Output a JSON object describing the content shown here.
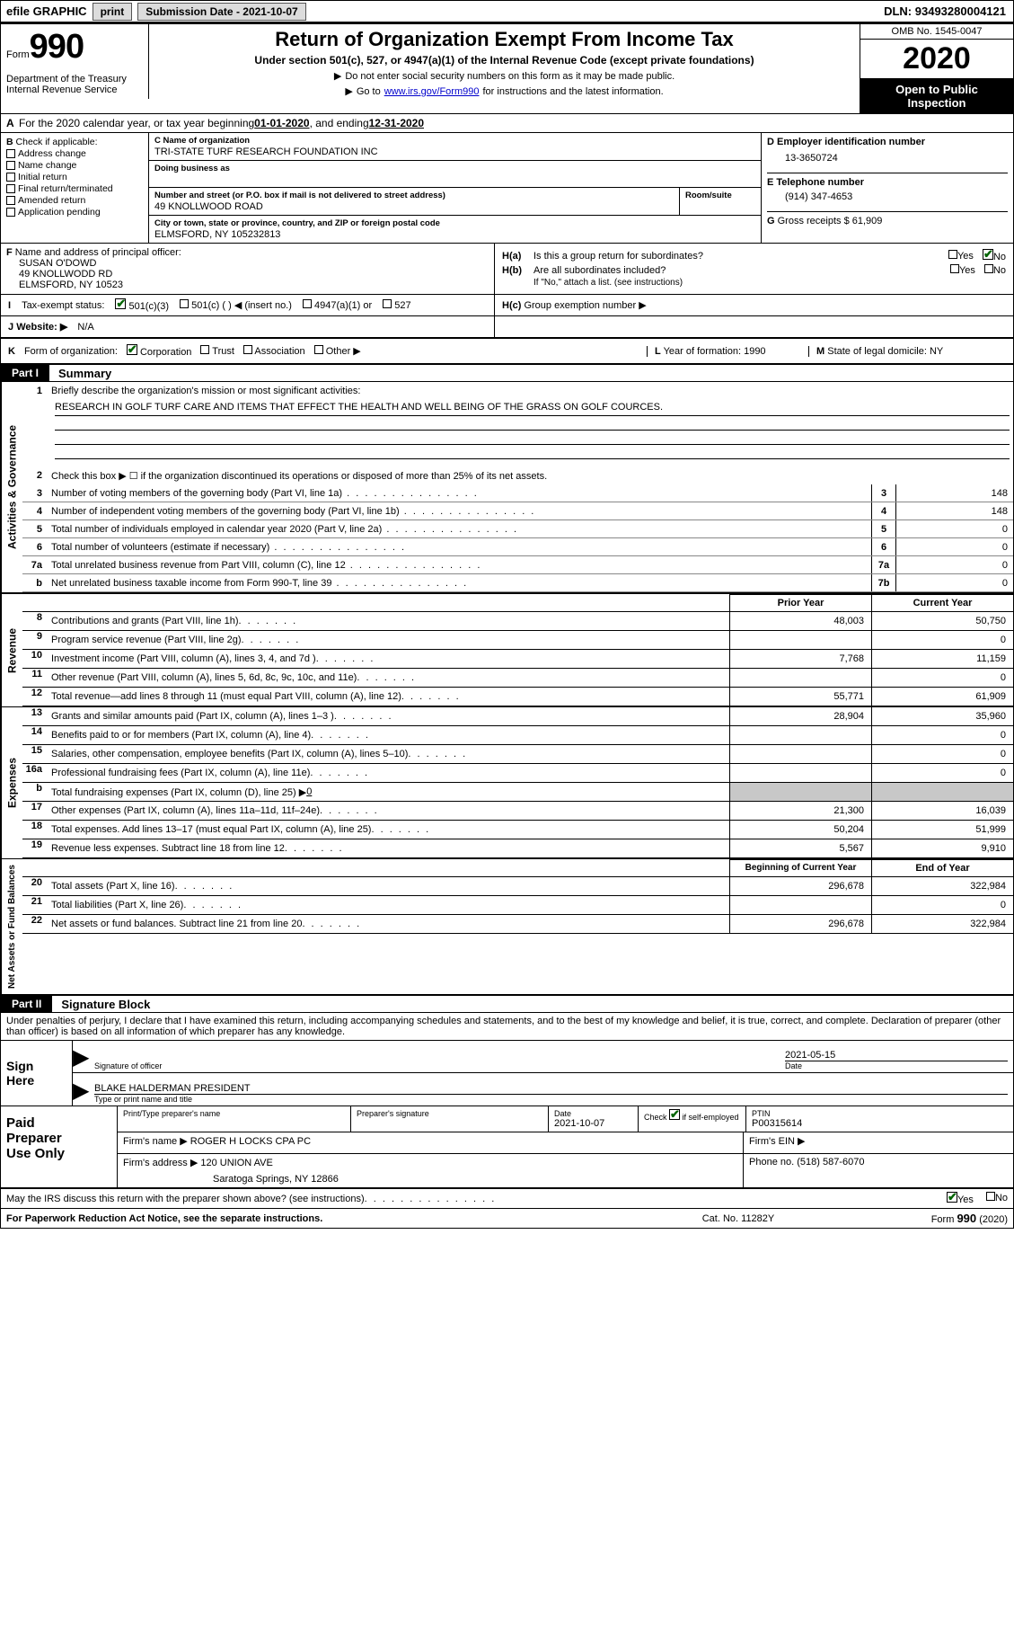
{
  "topbar": {
    "efile": "efile GRAPHIC",
    "print": "print",
    "submission_label": "Submission Date - ",
    "submission_date": "2021-10-07",
    "dln_label": "DLN: ",
    "dln": "93493280004121"
  },
  "header": {
    "form_word": "Form",
    "form_num": "990",
    "dept1": "Department of the Treasury",
    "dept2": "Internal Revenue Service",
    "title": "Return of Organization Exempt From Income Tax",
    "subtitle": "Under section 501(c), 527, or 4947(a)(1) of the Internal Revenue Code (except private foundations)",
    "instr1": "Do not enter social security numbers on this form as it may be made public.",
    "instr2_pre": "Go to ",
    "instr2_link": "www.irs.gov/Form990",
    "instr2_post": " for instructions and the latest information.",
    "omb": "OMB No. 1545-0047",
    "year": "2020",
    "open1": "Open to Public",
    "open2": "Inspection"
  },
  "a_line": {
    "label_a": "A",
    "text": "For the 2020 calendar year, or tax year beginning ",
    "begin": "01-01-2020",
    "mid": ", and ending ",
    "end": "12-31-2020"
  },
  "col_b": {
    "label": "B",
    "check_label": "Check if applicable:",
    "items": [
      "Address change",
      "Name change",
      "Initial return",
      "Final return/terminated",
      "Amended return",
      "Application pending"
    ]
  },
  "col_c": {
    "name_label": "C Name of organization",
    "name": "TRI-STATE TURF RESEARCH FOUNDATION INC",
    "dba_label": "Doing business as",
    "dba": "",
    "street_label": "Number and street (or P.O. box if mail is not delivered to street address)",
    "street": "49 KNOLLWOOD ROAD",
    "suite_label": "Room/suite",
    "suite": "",
    "city_label": "City or town, state or province, country, and ZIP or foreign postal code",
    "city": "ELMSFORD, NY  105232813"
  },
  "col_d": {
    "d_label": "D Employer identification number",
    "ein": "13-3650724",
    "e_label": "E Telephone number",
    "phone": "(914) 347-4653",
    "g_label": "G",
    "g_text": "Gross receipts $ ",
    "g_val": "61,909"
  },
  "officer": {
    "f_label": "F",
    "label": "Name and address of principal officer:",
    "name": "SUSAN O'DOWD",
    "addr1": "49 KNOLLWODD RD",
    "addr2": "ELMSFORD, NY  10523"
  },
  "h_section": {
    "ha_label": "H(a)",
    "ha_text": "Is this a group return for subordinates?",
    "hb_label": "H(b)",
    "hb_text": "Are all subordinates included?",
    "hb_note": "If \"No,\" attach a list. (see instructions)",
    "hc_label": "H(c)",
    "hc_text": "Group exemption number ▶",
    "yes": "Yes",
    "no": "No"
  },
  "tax_status": {
    "i_label": "I",
    "label": "Tax-exempt status:",
    "opt1": "501(c)(3)",
    "opt2": "501(c) (  ) ◀ (insert no.)",
    "opt3": "4947(a)(1) or",
    "opt4": "527"
  },
  "website": {
    "j_label": "J",
    "label": "Website: ▶",
    "val": "N/A"
  },
  "k_row": {
    "k_label": "K",
    "label": "Form of organization:",
    "opts": [
      "Corporation",
      "Trust",
      "Association",
      "Other ▶"
    ],
    "l_label": "L",
    "l_text": "Year of formation: ",
    "l_val": "1990",
    "m_label": "M",
    "m_text": "State of legal domicile: ",
    "m_val": "NY"
  },
  "part1": {
    "hdr": "Part I",
    "title": "Summary"
  },
  "sections": {
    "gov_label": "Activities & Governance",
    "rev_label": "Revenue",
    "exp_label": "Expenses",
    "net_label": "Net Assets or Fund Balances"
  },
  "line1": {
    "num": "1",
    "text": "Briefly describe the organization's mission or most significant activities:",
    "mission": "RESEARCH IN GOLF TURF CARE AND ITEMS THAT EFFECT THE HEALTH AND WELL BEING OF THE GRASS ON GOLF COURCES."
  },
  "line2": {
    "num": "2",
    "text": "Check this box ▶ ☐ if the organization discontinued its operations or disposed of more than 25% of its net assets."
  },
  "lines_single": [
    {
      "num": "3",
      "text": "Number of voting members of the governing body (Part VI, line 1a)",
      "rnum": "3",
      "val": "148"
    },
    {
      "num": "4",
      "text": "Number of independent voting members of the governing body (Part VI, line 1b)",
      "rnum": "4",
      "val": "148"
    },
    {
      "num": "5",
      "text": "Total number of individuals employed in calendar year 2020 (Part V, line 2a)",
      "rnum": "5",
      "val": "0"
    },
    {
      "num": "6",
      "text": "Total number of volunteers (estimate if necessary)",
      "rnum": "6",
      "val": "0"
    },
    {
      "num": "7a",
      "text": "Total unrelated business revenue from Part VIII, column (C), line 12",
      "rnum": "7a",
      "val": "0"
    },
    {
      "num": "b",
      "text": "Net unrelated business taxable income from Form 990-T, line 39",
      "rnum": "7b",
      "val": "0"
    }
  ],
  "col_headers": {
    "prior": "Prior Year",
    "current": "Current Year",
    "begin": "Beginning of Current Year",
    "end": "End of Year"
  },
  "revenue_lines": [
    {
      "num": "8",
      "text": "Contributions and grants (Part VIII, line 1h)",
      "pv": "48,003",
      "cv": "50,750"
    },
    {
      "num": "9",
      "text": "Program service revenue (Part VIII, line 2g)",
      "pv": "",
      "cv": "0"
    },
    {
      "num": "10",
      "text": "Investment income (Part VIII, column (A), lines 3, 4, and 7d )",
      "pv": "7,768",
      "cv": "11,159"
    },
    {
      "num": "11",
      "text": "Other revenue (Part VIII, column (A), lines 5, 6d, 8c, 9c, 10c, and 11e)",
      "pv": "",
      "cv": "0"
    },
    {
      "num": "12",
      "text": "Total revenue—add lines 8 through 11 (must equal Part VIII, column (A), line 12)",
      "pv": "55,771",
      "cv": "61,909"
    }
  ],
  "expense_lines": [
    {
      "num": "13",
      "text": "Grants and similar amounts paid (Part IX, column (A), lines 1–3 )",
      "pv": "28,904",
      "cv": "35,960"
    },
    {
      "num": "14",
      "text": "Benefits paid to or for members (Part IX, column (A), line 4)",
      "pv": "",
      "cv": "0"
    },
    {
      "num": "15",
      "text": "Salaries, other compensation, employee benefits (Part IX, column (A), lines 5–10)",
      "pv": "",
      "cv": "0"
    },
    {
      "num": "16a",
      "text": "Professional fundraising fees (Part IX, column (A), line 11e)",
      "pv": "",
      "cv": "0"
    },
    {
      "num": "b",
      "text": "Total fundraising expenses (Part IX, column (D), line 25) ▶",
      "pv": "shade",
      "cv": "shade",
      "extra": "0"
    },
    {
      "num": "17",
      "text": "Other expenses (Part IX, column (A), lines 11a–11d, 11f–24e)",
      "pv": "21,300",
      "cv": "16,039"
    },
    {
      "num": "18",
      "text": "Total expenses. Add lines 13–17 (must equal Part IX, column (A), line 25)",
      "pv": "50,204",
      "cv": "51,999"
    },
    {
      "num": "19",
      "text": "Revenue less expenses. Subtract line 18 from line 12",
      "pv": "5,567",
      "cv": "9,910"
    }
  ],
  "net_lines": [
    {
      "num": "20",
      "text": "Total assets (Part X, line 16)",
      "pv": "296,678",
      "cv": "322,984"
    },
    {
      "num": "21",
      "text": "Total liabilities (Part X, line 26)",
      "pv": "",
      "cv": "0"
    },
    {
      "num": "22",
      "text": "Net assets or fund balances. Subtract line 21 from line 20",
      "pv": "296,678",
      "cv": "322,984"
    }
  ],
  "part2": {
    "hdr": "Part II",
    "title": "Signature Block"
  },
  "declaration": "Under penalties of perjury, I declare that I have examined this return, including accompanying schedules and statements, and to the best of my knowledge and belief, it is true, correct, and complete. Declaration of preparer (other than officer) is based on all information of which preparer has any knowledge.",
  "sign": {
    "label1": "Sign",
    "label2": "Here",
    "sig_label": "Signature of officer",
    "date_label": "Date",
    "date_val": "2021-05-15",
    "name_label": "Type or print name and title",
    "name_val": "BLAKE HALDERMAN  PRESIDENT"
  },
  "prep": {
    "label1": "Paid",
    "label2": "Preparer",
    "label3": "Use Only",
    "h1": "Print/Type preparer's name",
    "h2": "Preparer's signature",
    "h3": "Date",
    "h3v": "2021-10-07",
    "h4": "Check ☑ if self-employed",
    "h5": "PTIN",
    "h5v": "P00315614",
    "firm_label": "Firm's name   ▶",
    "firm": "ROGER H LOCKS CPA PC",
    "ein_label": "Firm's EIN ▶",
    "ein": "",
    "addr_label": "Firm's address ▶",
    "addr1": "120 UNION AVE",
    "addr2": "Saratoga Springs, NY  12866",
    "phone_label": "Phone no. ",
    "phone": "(518) 587-6070"
  },
  "irs_discuss": {
    "text": "May the IRS discuss this return with the preparer shown above? (see instructions)",
    "yes": "Yes",
    "no": "No"
  },
  "footer": {
    "left": "For Paperwork Reduction Act Notice, see the separate instructions.",
    "mid": "Cat. No. 11282Y",
    "right": "Form 990 (2020)"
  }
}
